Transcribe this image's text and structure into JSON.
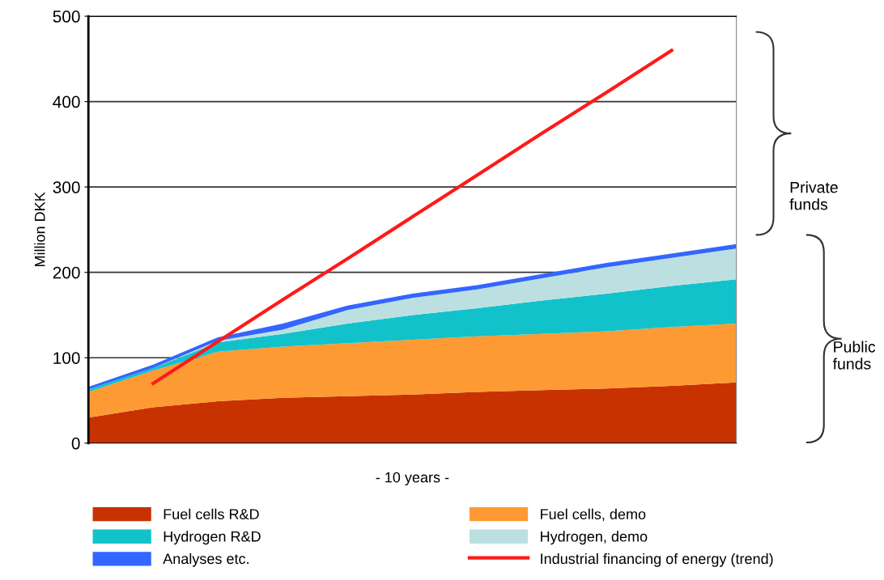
{
  "chart_data": {
    "type": "area",
    "stacked": true,
    "xlabel": "- 10 years -",
    "ylabel": "Million DKK",
    "categories": [
      null,
      null,
      null,
      null,
      null,
      null,
      null,
      null,
      null,
      null,
      null
    ],
    "ylim": [
      0,
      500
    ],
    "yticks": [
      0,
      100,
      200,
      300,
      400,
      500
    ],
    "grid": "y",
    "legend": "bottom",
    "series": [
      {
        "name": "Fuel cells R&D",
        "color": "#c83200",
        "values": [
          30,
          42,
          49,
          53,
          55,
          57,
          60,
          62,
          64,
          67,
          71
        ]
      },
      {
        "name": "Fuel cells, demo",
        "color": "#fd9a33",
        "values": [
          30,
          43,
          58,
          60,
          62,
          64,
          65,
          66,
          67,
          69,
          69
        ]
      },
      {
        "name": "Hydrogen R&D",
        "color": "#12c2cb",
        "values": [
          3,
          3,
          11,
          15,
          23,
          29,
          33,
          39,
          44,
          48,
          52
        ]
      },
      {
        "name": "Hydrogen, demo",
        "color": "#bce0e2",
        "values": [
          0,
          0,
          2,
          5,
          16,
          20,
          22,
          26,
          31,
          33,
          36
        ]
      },
      {
        "name": "Analyses etc.",
        "color": "#3366ff",
        "values": [
          3,
          4,
          4,
          7,
          5,
          5,
          5,
          5,
          5,
          5,
          5
        ]
      },
      {
        "name": "Industrial financing of energy (trend)",
        "type": "line",
        "color": "#ff1a1a",
        "values": [
          null,
          70,
          119,
          168,
          216,
          265,
          314,
          363,
          411,
          460,
          null
        ]
      }
    ],
    "annotations": [
      "Private funds",
      "Public funds"
    ]
  }
}
